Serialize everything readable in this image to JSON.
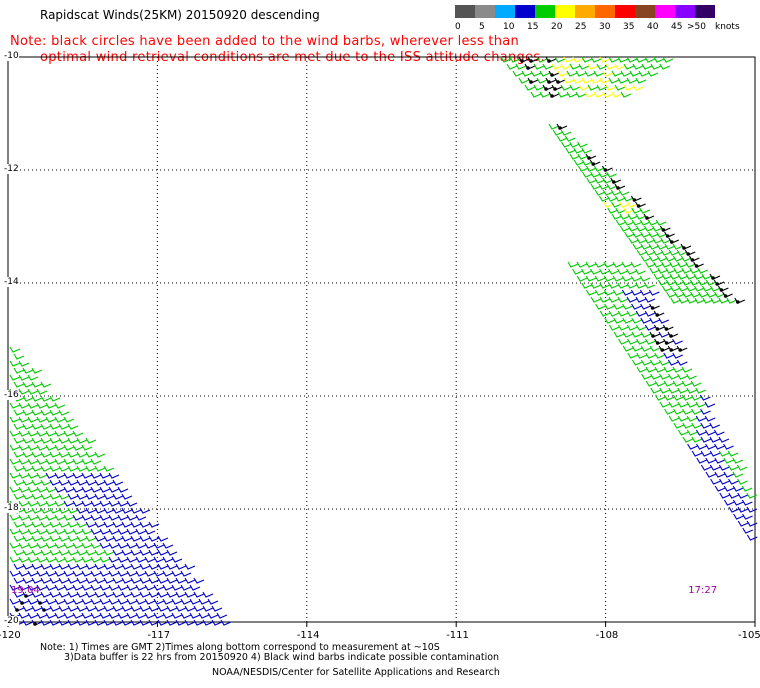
{
  "title": "Rapidscat Winds(25KM) 20150920 descending",
  "note_line1": "Note: black circles have been added to the wind barbs, wherever less than",
  "note_line2": "optimal wind retrieval conditions are met due to the ISS attitude changes.",
  "colorbar": {
    "labels": [
      "0",
      "5",
      "10",
      "15",
      "20",
      "25",
      "30",
      "35",
      "40",
      "45",
      ">50"
    ],
    "unit": "knots",
    "colors": [
      "#555555",
      "#8a8a8a",
      "#00aaff",
      "#0000cc",
      "#00cc00",
      "#ffff00",
      "#ffaa00",
      "#ff6600",
      "#ff0000",
      "#884422",
      "#ff00ff",
      "#8800ff",
      "#330066"
    ]
  },
  "map": {
    "lon_labels": [
      "-120",
      "-117",
      "-114",
      "-111",
      "-108",
      "-105"
    ],
    "lat_labels": [
      "-10",
      "-12",
      "-14",
      "-16",
      "-18",
      "-20"
    ],
    "lon_values": [
      -120,
      -117,
      -114,
      -111,
      -108,
      -105
    ],
    "lat_values": [
      -10,
      -12,
      -14,
      -16,
      -18,
      -20
    ],
    "grid_style": "dotted",
    "times": [
      {
        "label": "19:04",
        "lon": -119.9,
        "lat": -19.6
      },
      {
        "label": "17:27",
        "lon": -106.3,
        "lat": -19.6
      }
    ],
    "barb_colors": {
      "10-15": "#0000cc",
      "15-20": "#00cc00",
      "20-25": "#ffff00",
      "contaminated": "#000000"
    }
  },
  "footer": {
    "line1": "Note: 1) Times are GMT 2)Times along bottom correspond to measurement at ~10S",
    "line2": "3)Data buffer is 22 hrs from 20150920 4) Black wind barbs indicate possible contamination",
    "line3": "NOAA/NESDIS/Center for Satellite Applications and Research"
  }
}
